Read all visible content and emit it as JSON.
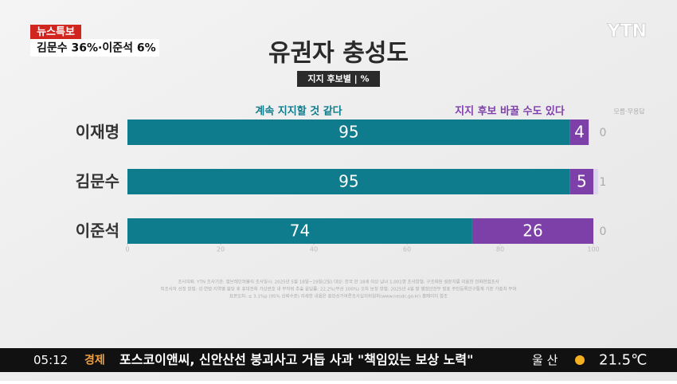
{
  "broadcast": {
    "badge": "뉴스특보",
    "headline": "김문수 36%·이준석 6%",
    "logo": "YTN",
    "ticker": {
      "time": "05:12",
      "section": "경제",
      "text": "포스코이앤씨, 신안산선 붕괴사고 거듭 사과 \"책임있는 보상 노력\"",
      "city": "울 산",
      "temperature": "21.5℃"
    }
  },
  "chart_data": {
    "type": "stacked-bar-horizontal",
    "title": "유권자 충성도",
    "subtitle": "지지 후보별 | %",
    "categories": [
      "이재명",
      "김문수",
      "이준석"
    ],
    "series": [
      {
        "name": "계속 지지할 것 같다",
        "color": "#0e7c8c",
        "values": [
          95,
          95,
          74
        ]
      },
      {
        "name": "지지 후보 바꿀 수도 있다",
        "color": "#7d3fa8",
        "values": [
          4,
          5,
          26
        ]
      },
      {
        "name": "모름·무응답",
        "color": "#dcd6ea",
        "values": [
          0,
          1,
          0
        ]
      }
    ],
    "xlim": [
      0,
      100
    ],
    "xticks": [
      0,
      20,
      40,
      60,
      80,
      100
    ],
    "notes": [
      "조사의뢰: YTN   조사기관: 엠브레인퍼블릭   조사일시: 2025년 5월 18일~19일(2일)   대상: 전국 만 18세 이상 남녀 1,001명   조사방법: 구조화된 설문지를 이용한 전화면접조사",
      "피조사자 선정 방법: 성·연령·지역별 할당 후 휴대전화 가상번호 내 무작위 추출   응답률: 22.2%(무선 100%)   오차 보정 방법: 2025년 4월 말 행정안전부 발표 주민등록인구통계 기준 가중치 부여",
      "표본오차: ± 3.1%p (95% 신뢰수준)   자세한 내용은 중앙선거여론조사심의위원회(www.nesdc.go.kr) 홈페이지 참조"
    ]
  }
}
